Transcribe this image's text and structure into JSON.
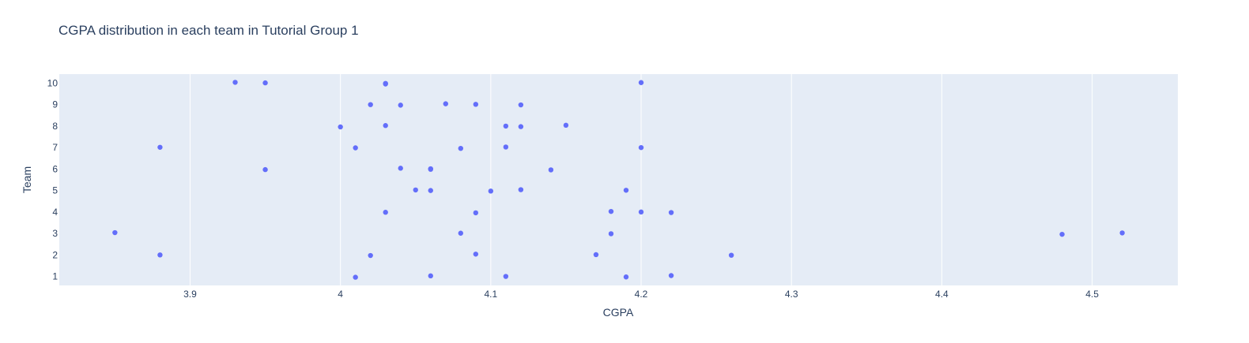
{
  "colors": {
    "plot_bg": "#e5ecf6",
    "grid": "#ffffff",
    "marker": "#636efa",
    "text": "#2a3f5f"
  },
  "chart_data": {
    "type": "scatter",
    "title": "CGPA distribution in each team in Tutorial Group 1",
    "xlabel": "CGPA",
    "ylabel": "Team",
    "xlim": [
      3.813,
      4.557
    ],
    "ylim": [
      0.58,
      10.42
    ],
    "x_ticks": [
      3.9,
      4,
      4.1,
      4.2,
      4.3,
      4.4,
      4.5
    ],
    "x_tick_labels": [
      "3.9",
      "4",
      "4.1",
      "4.2",
      "4.3",
      "4.4",
      "4.5"
    ],
    "y_ticks": [
      1,
      2,
      3,
      4,
      5,
      6,
      7,
      8,
      9,
      10
    ],
    "y_tick_labels": [
      "1",
      "2",
      "3",
      "4",
      "5",
      "6",
      "7",
      "8",
      "9",
      "10"
    ],
    "grid": "vertical",
    "legend": "none",
    "series": [
      {
        "points": [
          {
            "x": 3.93,
            "y": 10
          },
          {
            "x": 3.95,
            "y": 10
          },
          {
            "x": 4.03,
            "y": 10
          },
          {
            "x": 4.03,
            "y": 10
          },
          {
            "x": 4.2,
            "y": 10
          },
          {
            "x": 4.02,
            "y": 9
          },
          {
            "x": 4.04,
            "y": 9
          },
          {
            "x": 4.07,
            "y": 9
          },
          {
            "x": 4.09,
            "y": 9
          },
          {
            "x": 4.12,
            "y": 9
          },
          {
            "x": 4.0,
            "y": 8
          },
          {
            "x": 4.03,
            "y": 8
          },
          {
            "x": 4.11,
            "y": 8
          },
          {
            "x": 4.12,
            "y": 8
          },
          {
            "x": 4.15,
            "y": 8
          },
          {
            "x": 3.88,
            "y": 7
          },
          {
            "x": 4.01,
            "y": 7
          },
          {
            "x": 4.08,
            "y": 7
          },
          {
            "x": 4.11,
            "y": 7
          },
          {
            "x": 4.2,
            "y": 7
          },
          {
            "x": 3.95,
            "y": 6
          },
          {
            "x": 4.04,
            "y": 6
          },
          {
            "x": 4.06,
            "y": 6
          },
          {
            "x": 4.06,
            "y": 6
          },
          {
            "x": 4.14,
            "y": 6
          },
          {
            "x": 4.05,
            "y": 5
          },
          {
            "x": 4.06,
            "y": 5
          },
          {
            "x": 4.1,
            "y": 5
          },
          {
            "x": 4.12,
            "y": 5
          },
          {
            "x": 4.19,
            "y": 5
          },
          {
            "x": 4.03,
            "y": 4
          },
          {
            "x": 4.09,
            "y": 4
          },
          {
            "x": 4.18,
            "y": 4
          },
          {
            "x": 4.2,
            "y": 4
          },
          {
            "x": 4.22,
            "y": 4
          },
          {
            "x": 3.85,
            "y": 3
          },
          {
            "x": 4.08,
            "y": 3
          },
          {
            "x": 4.18,
            "y": 3
          },
          {
            "x": 4.48,
            "y": 3
          },
          {
            "x": 4.52,
            "y": 3
          },
          {
            "x": 3.88,
            "y": 2
          },
          {
            "x": 4.02,
            "y": 2
          },
          {
            "x": 4.09,
            "y": 2
          },
          {
            "x": 4.17,
            "y": 2
          },
          {
            "x": 4.26,
            "y": 2
          },
          {
            "x": 4.01,
            "y": 1
          },
          {
            "x": 4.06,
            "y": 1
          },
          {
            "x": 4.11,
            "y": 1
          },
          {
            "x": 4.19,
            "y": 1
          },
          {
            "x": 4.22,
            "y": 1
          }
        ]
      }
    ]
  }
}
